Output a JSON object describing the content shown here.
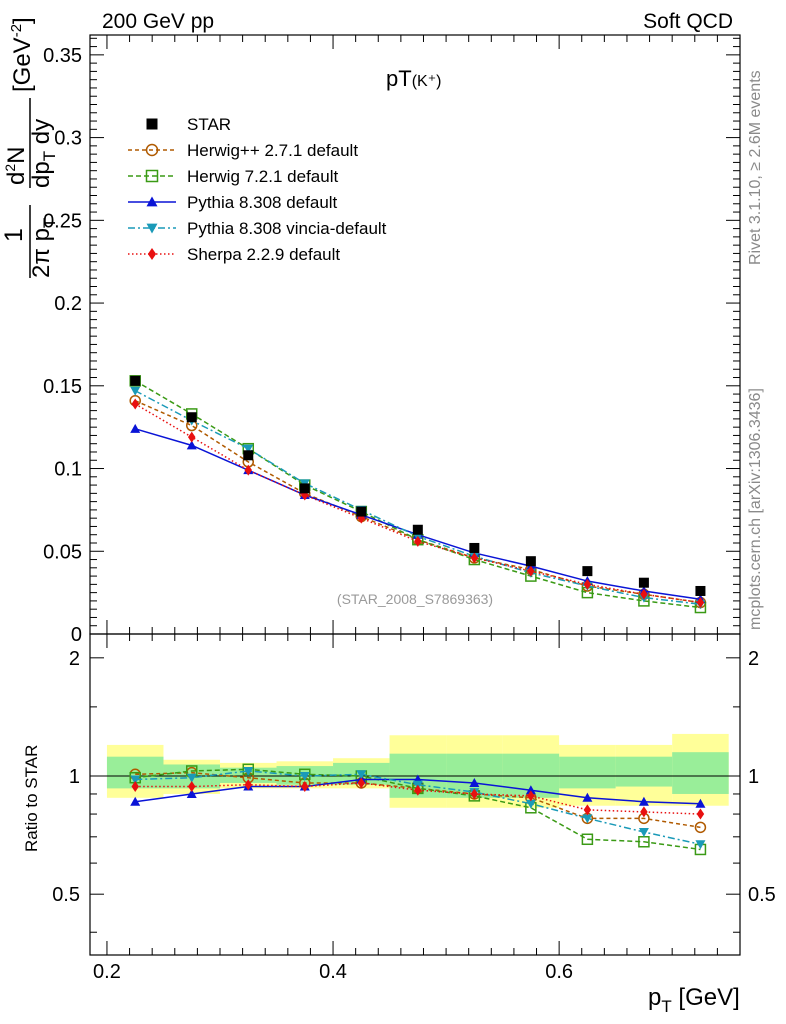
{
  "header": {
    "energy": "200 GeV pp",
    "category": "Soft QCD"
  },
  "side": {
    "rivet": "Rivet 3.1.10, ≥ 2.6M events",
    "source": "mcplots.cern.ch [arXiv:1306.3436]"
  },
  "chart_data": {
    "type": "line",
    "title": "pT(K⁺)",
    "title_main": "pT",
    "title_particle": "(K⁺)",
    "watermark": "(STAR_2008_S7869363)",
    "xlabel": "p_T [GeV]",
    "xlabel_main": "p",
    "xlabel_sub": "T",
    "xlabel_unit": "[GeV]",
    "ylabel": "1/(2π p_T) d²N/(dp_T dy) [GeV⁻²]",
    "ratio_ylabel": "Ratio to STAR",
    "xlim": [
      0.185,
      0.76
    ],
    "ylim": [
      0,
      0.362
    ],
    "ratio_ylim": [
      0.35,
      2.3
    ],
    "x_ticks": [
      0.2,
      0.4,
      0.6
    ],
    "x_tick_labels": [
      "0.2",
      "0.4",
      "0.6"
    ],
    "y_ticks": [
      0,
      0.05,
      0.1,
      0.15,
      0.2,
      0.25,
      0.3,
      0.35
    ],
    "y_tick_labels": [
      "0",
      "0.05",
      "0.1",
      "0.15",
      "0.2",
      "0.25",
      "0.3",
      "0.35"
    ],
    "ratio_ticks": [
      0.5,
      1,
      2
    ],
    "ratio_tick_labels": [
      "0.5",
      "1",
      "2"
    ],
    "x": [
      0.225,
      0.275,
      0.325,
      0.375,
      0.425,
      0.475,
      0.525,
      0.575,
      0.625,
      0.675,
      0.725
    ],
    "data": {
      "name": "STAR",
      "values": [
        0.153,
        0.131,
        0.108,
        0.088,
        0.074,
        0.063,
        0.052,
        0.044,
        0.038,
        0.031,
        0.026
      ],
      "band_edges": [
        0.2,
        0.25,
        0.3,
        0.35,
        0.4,
        0.45,
        0.5,
        0.55,
        0.6,
        0.65,
        0.7,
        0.75
      ],
      "band_inner": [
        [
          0.93,
          1.12
        ],
        [
          0.93,
          1.07
        ],
        [
          0.96,
          1.05
        ],
        [
          0.95,
          1.06
        ],
        [
          0.95,
          1.08
        ],
        [
          0.88,
          1.14
        ],
        [
          0.88,
          1.14
        ],
        [
          0.88,
          1.14
        ],
        [
          0.93,
          1.12
        ],
        [
          0.94,
          1.12
        ],
        [
          0.9,
          1.15
        ]
      ],
      "band_outer": [
        [
          0.88,
          1.2
        ],
        [
          0.9,
          1.1
        ],
        [
          0.93,
          1.08
        ],
        [
          0.93,
          1.09
        ],
        [
          0.93,
          1.11
        ],
        [
          0.83,
          1.27
        ],
        [
          0.83,
          1.27
        ],
        [
          0.83,
          1.27
        ],
        [
          0.84,
          1.2
        ],
        [
          0.84,
          1.2
        ],
        [
          0.84,
          1.28
        ]
      ]
    },
    "series": [
      {
        "name": "Herwig++ 2.7.1 default",
        "color": "#b05a00",
        "dash": "4,3",
        "marker": "circle-open",
        "values": [
          0.141,
          0.126,
          0.104,
          0.085,
          0.071,
          0.057,
          0.046,
          0.039,
          0.029,
          0.024,
          0.019
        ],
        "ratio": [
          1.01,
          1.02,
          0.99,
          0.96,
          0.96,
          0.93,
          0.9,
          0.88,
          0.78,
          0.78,
          0.74
        ]
      },
      {
        "name": "Herwig 7.2.1 default",
        "color": "#3a9a15",
        "dash": "5,3",
        "marker": "square-open",
        "values": [
          0.153,
          0.133,
          0.112,
          0.09,
          0.074,
          0.057,
          0.045,
          0.035,
          0.025,
          0.02,
          0.016
        ],
        "ratio": [
          0.99,
          1.03,
          1.04,
          1.01,
          1.0,
          0.93,
          0.89,
          0.83,
          0.69,
          0.68,
          0.65
        ]
      },
      {
        "name": "Pythia 8.308 default",
        "color": "#0a14d6",
        "dash": "none",
        "marker": "triangle-up",
        "values": [
          0.124,
          0.114,
          0.099,
          0.084,
          0.072,
          0.06,
          0.049,
          0.041,
          0.032,
          0.026,
          0.021
        ],
        "ratio": [
          0.86,
          0.9,
          0.94,
          0.94,
          0.98,
          0.98,
          0.96,
          0.92,
          0.88,
          0.86,
          0.85
        ]
      },
      {
        "name": "Pythia 8.308 vincia-default",
        "color": "#1a9ab8",
        "dash": "7,3,2,3",
        "marker": "triangle-down",
        "values": [
          0.147,
          0.129,
          0.112,
          0.091,
          0.075,
          0.059,
          0.047,
          0.037,
          0.029,
          0.022,
          0.018
        ],
        "ratio": [
          0.98,
          0.99,
          1.03,
          1.0,
          1.01,
          0.95,
          0.91,
          0.85,
          0.78,
          0.72,
          0.67
        ]
      },
      {
        "name": "Sherpa 2.2.9 default",
        "color": "#e81010",
        "dash": "1.5,2.5",
        "marker": "diamond",
        "values": [
          0.139,
          0.119,
          0.099,
          0.084,
          0.07,
          0.056,
          0.046,
          0.038,
          0.03,
          0.024,
          0.019
        ],
        "ratio": [
          0.94,
          0.94,
          0.95,
          0.94,
          0.96,
          0.92,
          0.9,
          0.89,
          0.82,
          0.81,
          0.8
        ]
      }
    ],
    "legend_position": "top-left",
    "grid": false
  }
}
